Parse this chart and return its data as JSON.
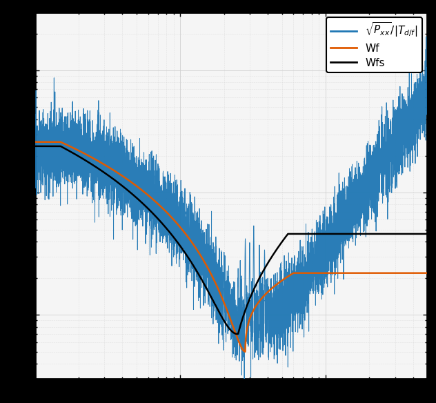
{
  "line1_color": "#1f77b4",
  "line2_color": "#e05a00",
  "line3_color": "#000000",
  "bg_color": "#f5f5f5",
  "grid_color": "#d0d0d0",
  "figure_bg": "#000000",
  "xlim": [
    1,
    500
  ],
  "ylim": [
    0.003,
    3.0
  ],
  "legend_labels": [
    "$\\sqrt{P_{xx}}/|T_{d/f}|$",
    "Wf",
    "Wfs"
  ],
  "figsize": [
    6.32,
    5.84
  ],
  "dpi": 100
}
